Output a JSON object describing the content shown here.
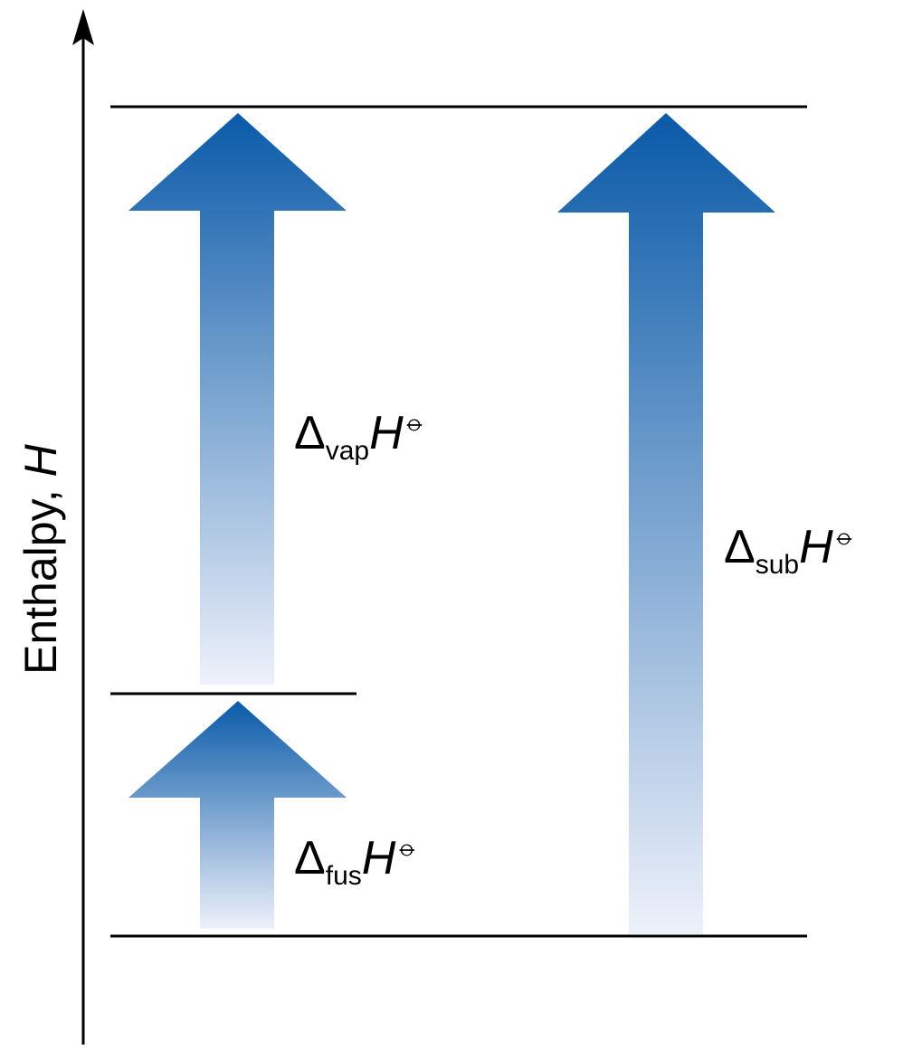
{
  "axis": {
    "label": "Enthalpy, ",
    "symbol": "H"
  },
  "transitions": [
    {
      "id": "vap",
      "delta": "Δ",
      "subscript": "vap",
      "symbol": "H",
      "standard_state_mark": "⦵"
    },
    {
      "id": "fus",
      "delta": "Δ",
      "subscript": "fus",
      "symbol": "H",
      "standard_state_mark": "⦵"
    },
    {
      "id": "sub",
      "delta": "Δ",
      "subscript": "sub",
      "symbol": "H",
      "standard_state_mark": "⦵"
    }
  ],
  "colors": {
    "arrow_top": "#0a5aa8",
    "arrow_bottom": "#eef1fa",
    "lines": "#000000"
  }
}
